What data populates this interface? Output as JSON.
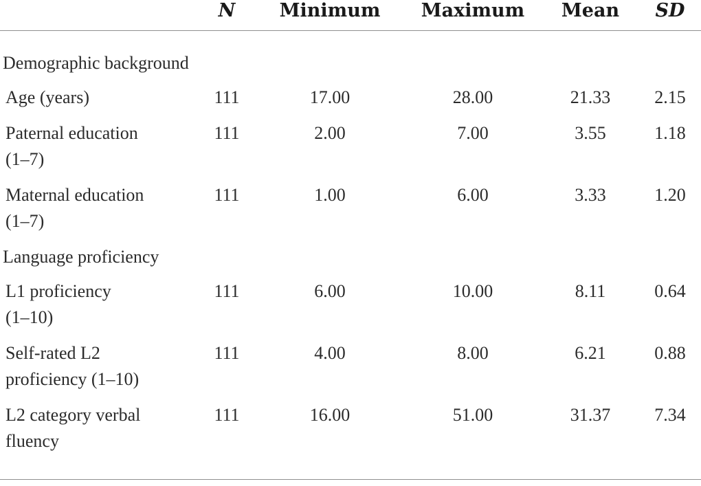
{
  "table": {
    "columns": {
      "label": "",
      "n": "N",
      "minimum": "Minimum",
      "maximum": "Maximum",
      "mean": "Mean",
      "sd": "SD"
    },
    "sections": [
      {
        "title": "Demographic background",
        "rows": [
          {
            "label_lines": [
              "Age (years)"
            ],
            "n": "111",
            "minimum": "17.00",
            "maximum": "28.00",
            "mean": "21.33",
            "sd": "2.15"
          },
          {
            "label_lines": [
              "Paternal education",
              "(1–7)"
            ],
            "n": "111",
            "minimum": "2.00",
            "maximum": "7.00",
            "mean": "3.55",
            "sd": "1.18"
          },
          {
            "label_lines": [
              "Maternal education",
              "(1–7)"
            ],
            "n": "111",
            "minimum": "1.00",
            "maximum": "6.00",
            "mean": "3.33",
            "sd": "1.20"
          }
        ]
      },
      {
        "title": "Language proficiency",
        "rows": [
          {
            "label_lines": [
              "L1 proficiency",
              "(1–10)"
            ],
            "n": "111",
            "minimum": "6.00",
            "maximum": "10.00",
            "mean": "8.11",
            "sd": "0.64"
          },
          {
            "label_lines": [
              "Self-rated L2",
              "proficiency (1–10)"
            ],
            "n": "111",
            "minimum": "4.00",
            "maximum": "8.00",
            "mean": "6.21",
            "sd": "0.88"
          },
          {
            "label_lines": [
              "L2 category verbal",
              "fluency"
            ],
            "n": "111",
            "minimum": "16.00",
            "maximum": "51.00",
            "mean": "31.37",
            "sd": "7.34"
          }
        ]
      }
    ]
  }
}
